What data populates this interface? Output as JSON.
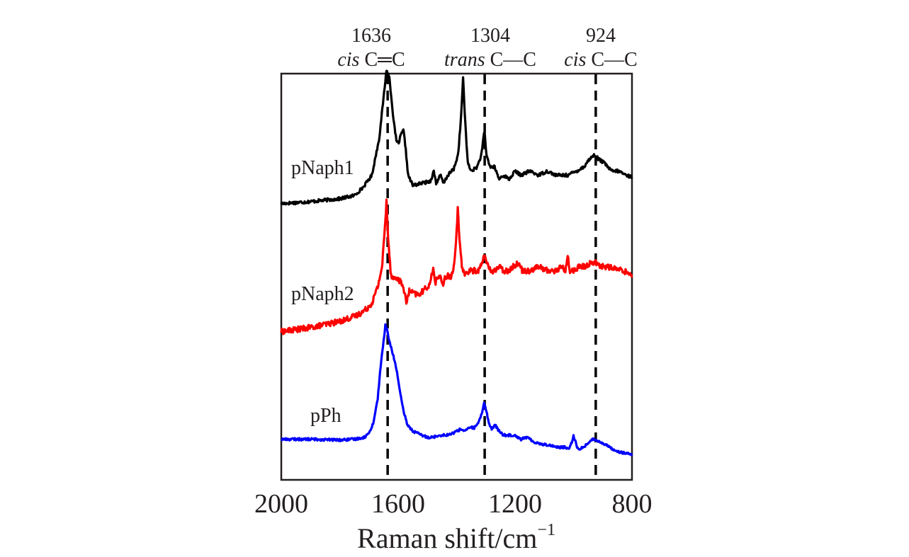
{
  "chart_data": {
    "type": "line",
    "title": "",
    "xlabel": "Raman shift/cm",
    "xlabel_sup": "−1",
    "ylabel": "",
    "xlim": [
      2000,
      800
    ],
    "x_reversed": true,
    "xticks": [
      2000,
      1600,
      1200,
      800
    ],
    "ylim": [
      0,
      1
    ],
    "yticks": [],
    "grid": false,
    "legend": "none",
    "reference_lines": [
      {
        "x": 1636,
        "number": "1636",
        "prefix": "cis",
        "bond": "C═C"
      },
      {
        "x": 1304,
        "number": "1304",
        "prefix": "trans",
        "bond": "C—C"
      },
      {
        "x": 924,
        "number": "924",
        "prefix": "cis",
        "bond": "C—C"
      }
    ],
    "series": [
      {
        "name": "pNaph1",
        "color": "#000000",
        "baseline": 0.68,
        "noise": 0.004,
        "points": [
          [
            2000,
            0.0
          ],
          [
            1900,
            0.005
          ],
          [
            1800,
            0.012
          ],
          [
            1750,
            0.02
          ],
          [
            1720,
            0.04
          ],
          [
            1690,
            0.07
          ],
          [
            1665,
            0.16
          ],
          [
            1650,
            0.26
          ],
          [
            1640,
            0.33
          ],
          [
            1630,
            0.31
          ],
          [
            1615,
            0.2
          ],
          [
            1605,
            0.15
          ],
          [
            1598,
            0.15
          ],
          [
            1590,
            0.17
          ],
          [
            1582,
            0.18
          ],
          [
            1575,
            0.14
          ],
          [
            1566,
            0.07
          ],
          [
            1550,
            0.045
          ],
          [
            1520,
            0.05
          ],
          [
            1490,
            0.055
          ],
          [
            1478,
            0.08
          ],
          [
            1470,
            0.05
          ],
          [
            1455,
            0.07
          ],
          [
            1445,
            0.05
          ],
          [
            1430,
            0.07
          ],
          [
            1410,
            0.085
          ],
          [
            1395,
            0.12
          ],
          [
            1385,
            0.21
          ],
          [
            1378,
            0.31
          ],
          [
            1372,
            0.22
          ],
          [
            1362,
            0.1
          ],
          [
            1350,
            0.08
          ],
          [
            1330,
            0.09
          ],
          [
            1315,
            0.12
          ],
          [
            1305,
            0.18
          ],
          [
            1298,
            0.12
          ],
          [
            1285,
            0.09
          ],
          [
            1270,
            0.09
          ],
          [
            1255,
            0.06
          ],
          [
            1240,
            0.07
          ],
          [
            1220,
            0.06
          ],
          [
            1200,
            0.08
          ],
          [
            1180,
            0.07
          ],
          [
            1150,
            0.08
          ],
          [
            1120,
            0.07
          ],
          [
            1090,
            0.08
          ],
          [
            1060,
            0.07
          ],
          [
            1020,
            0.07
          ],
          [
            990,
            0.08
          ],
          [
            965,
            0.09
          ],
          [
            945,
            0.11
          ],
          [
            928,
            0.12
          ],
          [
            915,
            0.11
          ],
          [
            895,
            0.1
          ],
          [
            870,
            0.08
          ],
          [
            845,
            0.08
          ],
          [
            820,
            0.07
          ],
          [
            800,
            0.065
          ]
        ]
      },
      {
        "name": "pNaph2",
        "color": "#ff0000",
        "baseline": 0.365,
        "noise": 0.007,
        "points": [
          [
            2000,
            0.0
          ],
          [
            1900,
            0.01
          ],
          [
            1800,
            0.025
          ],
          [
            1740,
            0.04
          ],
          [
            1710,
            0.055
          ],
          [
            1690,
            0.07
          ],
          [
            1670,
            0.11
          ],
          [
            1655,
            0.16
          ],
          [
            1645,
            0.26
          ],
          [
            1640,
            0.32
          ],
          [
            1635,
            0.24
          ],
          [
            1625,
            0.14
          ],
          [
            1612,
            0.13
          ],
          [
            1600,
            0.13
          ],
          [
            1590,
            0.12
          ],
          [
            1582,
            0.11
          ],
          [
            1572,
            0.07
          ],
          [
            1562,
            0.1
          ],
          [
            1550,
            0.095
          ],
          [
            1530,
            0.09
          ],
          [
            1515,
            0.1
          ],
          [
            1500,
            0.11
          ],
          [
            1490,
            0.12
          ],
          [
            1480,
            0.16
          ],
          [
            1474,
            0.12
          ],
          [
            1465,
            0.13
          ],
          [
            1455,
            0.14
          ],
          [
            1448,
            0.11
          ],
          [
            1440,
            0.13
          ],
          [
            1430,
            0.14
          ],
          [
            1420,
            0.13
          ],
          [
            1410,
            0.16
          ],
          [
            1402,
            0.22
          ],
          [
            1396,
            0.3
          ],
          [
            1390,
            0.22
          ],
          [
            1382,
            0.16
          ],
          [
            1370,
            0.14
          ],
          [
            1355,
            0.15
          ],
          [
            1340,
            0.15
          ],
          [
            1325,
            0.15
          ],
          [
            1312,
            0.17
          ],
          [
            1305,
            0.19
          ],
          [
            1298,
            0.17
          ],
          [
            1285,
            0.15
          ],
          [
            1270,
            0.15
          ],
          [
            1255,
            0.16
          ],
          [
            1240,
            0.15
          ],
          [
            1225,
            0.15
          ],
          [
            1205,
            0.16
          ],
          [
            1190,
            0.17
          ],
          [
            1175,
            0.15
          ],
          [
            1150,
            0.15
          ],
          [
            1120,
            0.16
          ],
          [
            1090,
            0.15
          ],
          [
            1060,
            0.15
          ],
          [
            1040,
            0.16
          ],
          [
            1028,
            0.15
          ],
          [
            1020,
            0.19
          ],
          [
            1014,
            0.15
          ],
          [
            1000,
            0.15
          ],
          [
            980,
            0.16
          ],
          [
            960,
            0.16
          ],
          [
            940,
            0.17
          ],
          [
            925,
            0.17
          ],
          [
            905,
            0.16
          ],
          [
            885,
            0.16
          ],
          [
            860,
            0.155
          ],
          [
            830,
            0.15
          ],
          [
            800,
            0.14
          ]
        ]
      },
      {
        "name": "pPh",
        "color": "#0000ff",
        "baseline": 0.1,
        "noise": 0.003,
        "points": [
          [
            2000,
            0.0
          ],
          [
            1900,
            0.0
          ],
          [
            1800,
            -0.002
          ],
          [
            1750,
            0.0
          ],
          [
            1715,
            0.005
          ],
          [
            1700,
            0.015
          ],
          [
            1685,
            0.04
          ],
          [
            1670,
            0.1
          ],
          [
            1660,
            0.18
          ],
          [
            1650,
            0.24
          ],
          [
            1644,
            0.28
          ],
          [
            1638,
            0.27
          ],
          [
            1630,
            0.24
          ],
          [
            1618,
            0.21
          ],
          [
            1605,
            0.17
          ],
          [
            1595,
            0.12
          ],
          [
            1582,
            0.07
          ],
          [
            1568,
            0.035
          ],
          [
            1550,
            0.02
          ],
          [
            1520,
            0.01
          ],
          [
            1500,
            0.005
          ],
          [
            1480,
            0.005
          ],
          [
            1460,
            0.01
          ],
          [
            1440,
            0.01
          ],
          [
            1420,
            0.012
          ],
          [
            1400,
            0.02
          ],
          [
            1385,
            0.025
          ],
          [
            1370,
            0.02
          ],
          [
            1355,
            0.03
          ],
          [
            1340,
            0.028
          ],
          [
            1325,
            0.04
          ],
          [
            1315,
            0.06
          ],
          [
            1306,
            0.09
          ],
          [
            1298,
            0.07
          ],
          [
            1290,
            0.04
          ],
          [
            1280,
            0.025
          ],
          [
            1268,
            0.035
          ],
          [
            1255,
            0.02
          ],
          [
            1240,
            0.01
          ],
          [
            1220,
            0.01
          ],
          [
            1200,
            0.01
          ],
          [
            1180,
            0.0
          ],
          [
            1160,
            0.005
          ],
          [
            1140,
            -0.005
          ],
          [
            1110,
            -0.012
          ],
          [
            1080,
            -0.015
          ],
          [
            1050,
            -0.02
          ],
          [
            1030,
            -0.02
          ],
          [
            1015,
            -0.022
          ],
          [
            1005,
            -0.005
          ],
          [
            1000,
            0.01
          ],
          [
            994,
            -0.005
          ],
          [
            985,
            -0.025
          ],
          [
            965,
            -0.02
          ],
          [
            945,
            -0.005
          ],
          [
            930,
            0.0
          ],
          [
            912,
            -0.005
          ],
          [
            895,
            -0.012
          ],
          [
            875,
            -0.02
          ],
          [
            850,
            -0.03
          ],
          [
            820,
            -0.035
          ],
          [
            800,
            -0.038
          ]
        ]
      }
    ]
  }
}
